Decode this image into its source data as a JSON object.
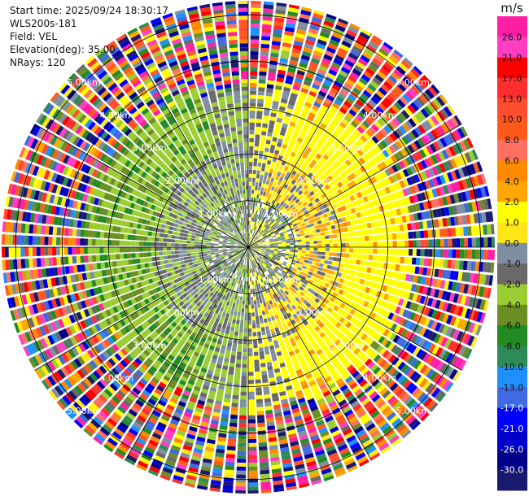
{
  "header": {
    "start_time": "Start time: 2025/09/24 18:30:17",
    "instrument": "WLS200s-181",
    "field": "Field: VEL",
    "elevation": "Elevation(deg): 35.00",
    "nrays": "NRays: 120"
  },
  "chart_data": {
    "type": "heatmap",
    "projection": "polar PPI",
    "field": "VEL",
    "units": "m/s",
    "elevation_deg": 35.0,
    "n_rays": 120,
    "range_max_km": 5.3,
    "range_rings_km": [
      1,
      2,
      3,
      4,
      5
    ],
    "range_ring_labels": [
      "1.00km",
      "2.00km",
      "3.00km",
      "4.00km",
      "5.00km"
    ],
    "grid": true,
    "colorbar": {
      "label": "m/s",
      "position": "right",
      "ticks": [
        "26.0",
        "21.0",
        "17.0",
        "13.0",
        "10.0",
        "8.0",
        "6.0",
        "4.0",
        "2.0",
        "1.0",
        "0.0",
        "-1.0",
        "-2.0",
        "-4.0",
        "-6.0",
        "-8.0",
        "-10.0",
        "-13.0",
        "-17.0",
        "-21.0",
        "-26.0",
        "-30.0"
      ],
      "colors": [
        "#ff1fa5",
        "#ff3ec1",
        "#ff0000",
        "#ff2e2e",
        "#ff4d2e",
        "#ff5a1a",
        "#ff7060",
        "#ff8a00",
        "#ffa600",
        "#ffff00",
        "#ffe619",
        "#7f8fa0",
        "#696969",
        "#9acd32",
        "#6b8e23",
        "#228b22",
        "#2e8b57",
        "#1e90ff",
        "#4169e1",
        "#0000ff",
        "#0000cd",
        "#00008b",
        "#191970"
      ]
    },
    "regions": [
      {
        "range_km": [
          0,
          1.0
        ],
        "description_values": "mixed near-zero",
        "dominant": [
          "0.0",
          "1.0",
          "-1.0",
          "4.0"
        ]
      },
      {
        "range_km": [
          1.0,
          2.0
        ],
        "sector": "east",
        "dominant": [
          "4.0",
          "2.0"
        ]
      },
      {
        "range_km": [
          1.0,
          2.0
        ],
        "sector": "west",
        "dominant": [
          "-2.0",
          "-1.0"
        ]
      },
      {
        "range_km": [
          2.0,
          3.2
        ],
        "sector": "east",
        "dominant": [
          "4.0",
          "6.0"
        ]
      },
      {
        "range_km": [
          2.0,
          3.2
        ],
        "sector": "west",
        "dominant": [
          "-2.0",
          "-4.0",
          "-6.0"
        ]
      },
      {
        "range_km": [
          3.2,
          5.3
        ],
        "dominant": "noise (all values)"
      }
    ]
  }
}
